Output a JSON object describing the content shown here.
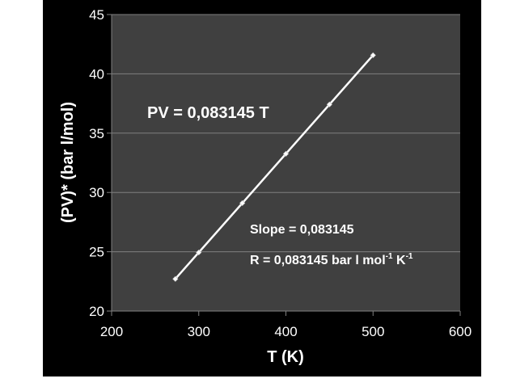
{
  "chart_data": {
    "type": "scatter",
    "title": "",
    "xlabel": "T (K)",
    "ylabel": "(PV)* (bar l/mol)",
    "xlim": [
      200,
      600
    ],
    "ylim": [
      20,
      45
    ],
    "x_ticks": [
      "200",
      "300",
      "400",
      "500",
      "600"
    ],
    "y_ticks": [
      "20",
      "25",
      "30",
      "35",
      "40",
      "45"
    ],
    "grid": "horizontal",
    "series": [
      {
        "x": [
          273.15,
          300,
          350,
          400,
          450,
          500
        ],
        "y": [
          22.71,
          24.94,
          29.1,
          33.26,
          37.42,
          41.57
        ],
        "line": true,
        "color": "#ffffff"
      }
    ],
    "annotations": {
      "equation": "PV = 0,083145 T",
      "slope": "Slope = 0,083145",
      "r_prefix": "R = 0,083145 bar l mol",
      "r_exp1": "-1",
      "r_mid": " K",
      "r_exp2": "-1"
    },
    "colors": {
      "background": "#000000",
      "plot_area": "#404040",
      "gridline": "#7f7f7f",
      "text": "#ffffff"
    }
  }
}
